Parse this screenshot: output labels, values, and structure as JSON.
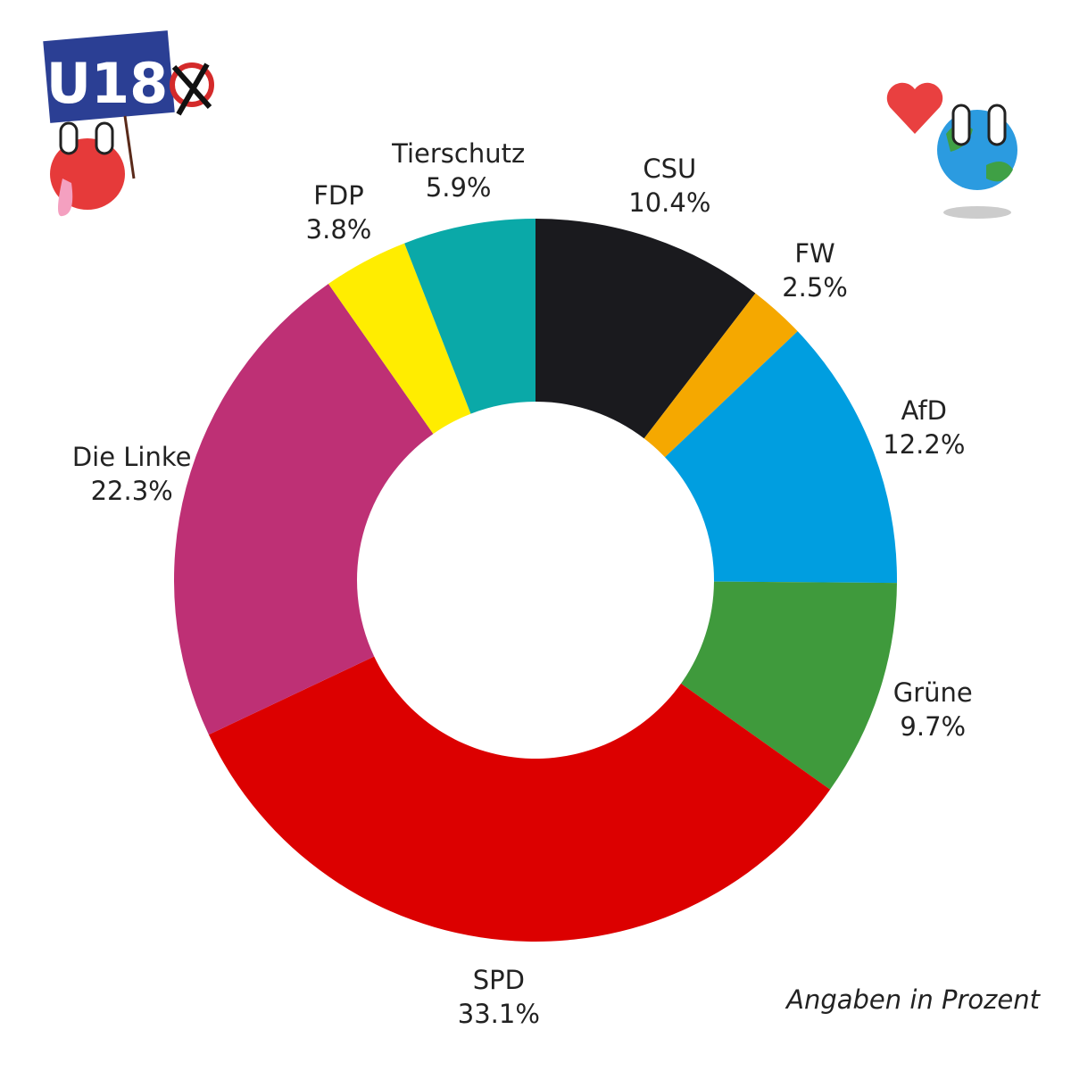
{
  "logo_text": "U18",
  "chart_data": {
    "type": "donut",
    "categories": [
      "CSU",
      "FW",
      "AfD",
      "Grüne",
      "SPD",
      "Die Linke",
      "FDP",
      "Tierschutz"
    ],
    "values": [
      10.4,
      2.5,
      12.2,
      9.7,
      33.1,
      22.3,
      3.8,
      5.9
    ],
    "value_labels": [
      "10.4%",
      "2.5%",
      "12.2%",
      "9.7%",
      "33.1%",
      "22.3%",
      "3.8%",
      "5.9%"
    ],
    "colors": [
      "#1a1a1e",
      "#f5a800",
      "#009ee0",
      "#3f9a3c",
      "#dc0000",
      "#be3075",
      "#ffed00",
      "#0aa9a8"
    ],
    "note": "Angaben in Prozent"
  }
}
